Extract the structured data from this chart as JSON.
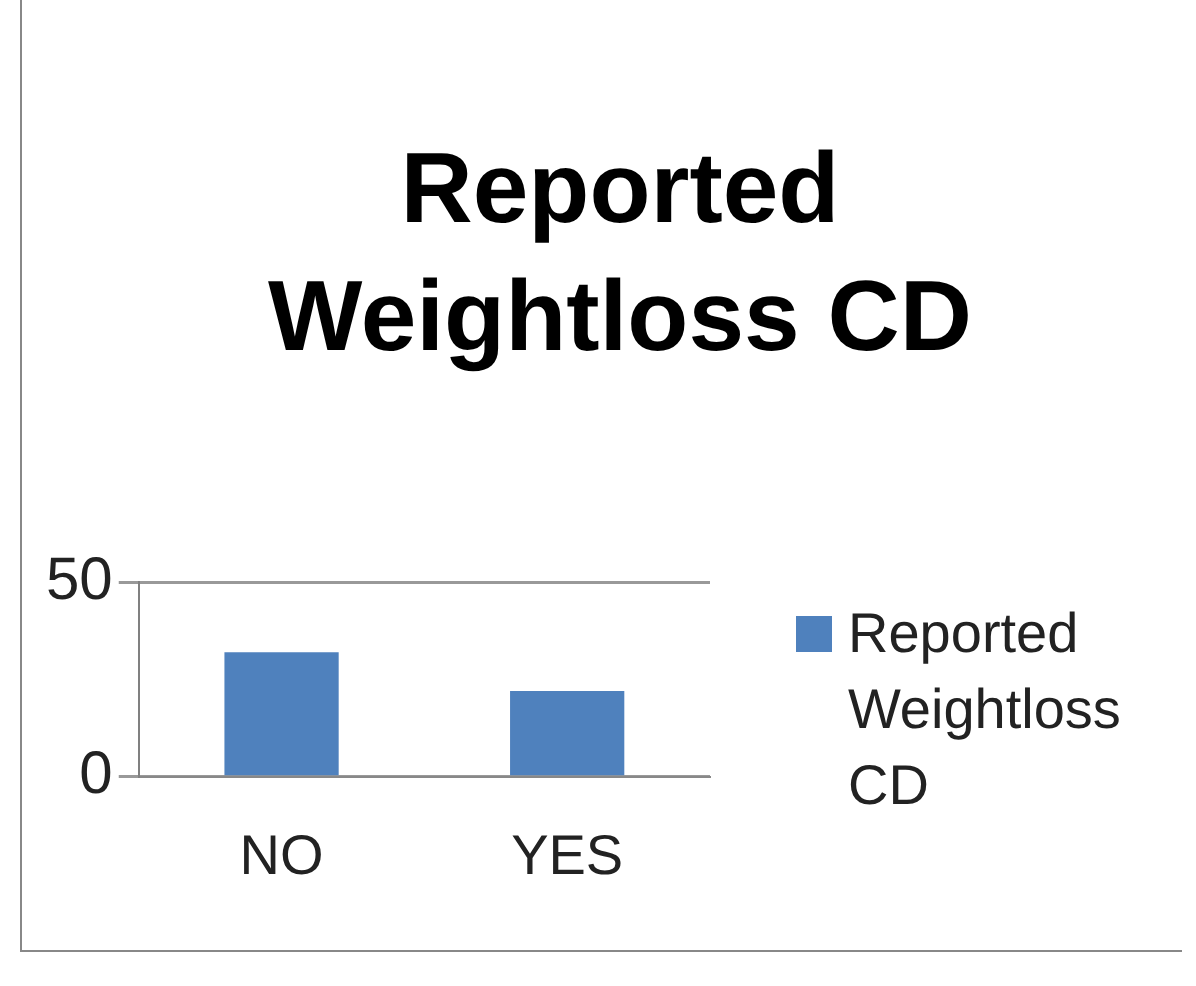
{
  "chart_data": {
    "type": "bar",
    "title": "Reported Weightloss CD",
    "categories": [
      "NO",
      "YES"
    ],
    "series": [
      {
        "name": "Reported Weightloss CD",
        "color": "#4f81bd",
        "values": [
          32,
          22
        ]
      }
    ],
    "ylim": [
      0,
      50
    ],
    "yticks": [
      0,
      50
    ],
    "grid": "y",
    "legend": "right"
  }
}
